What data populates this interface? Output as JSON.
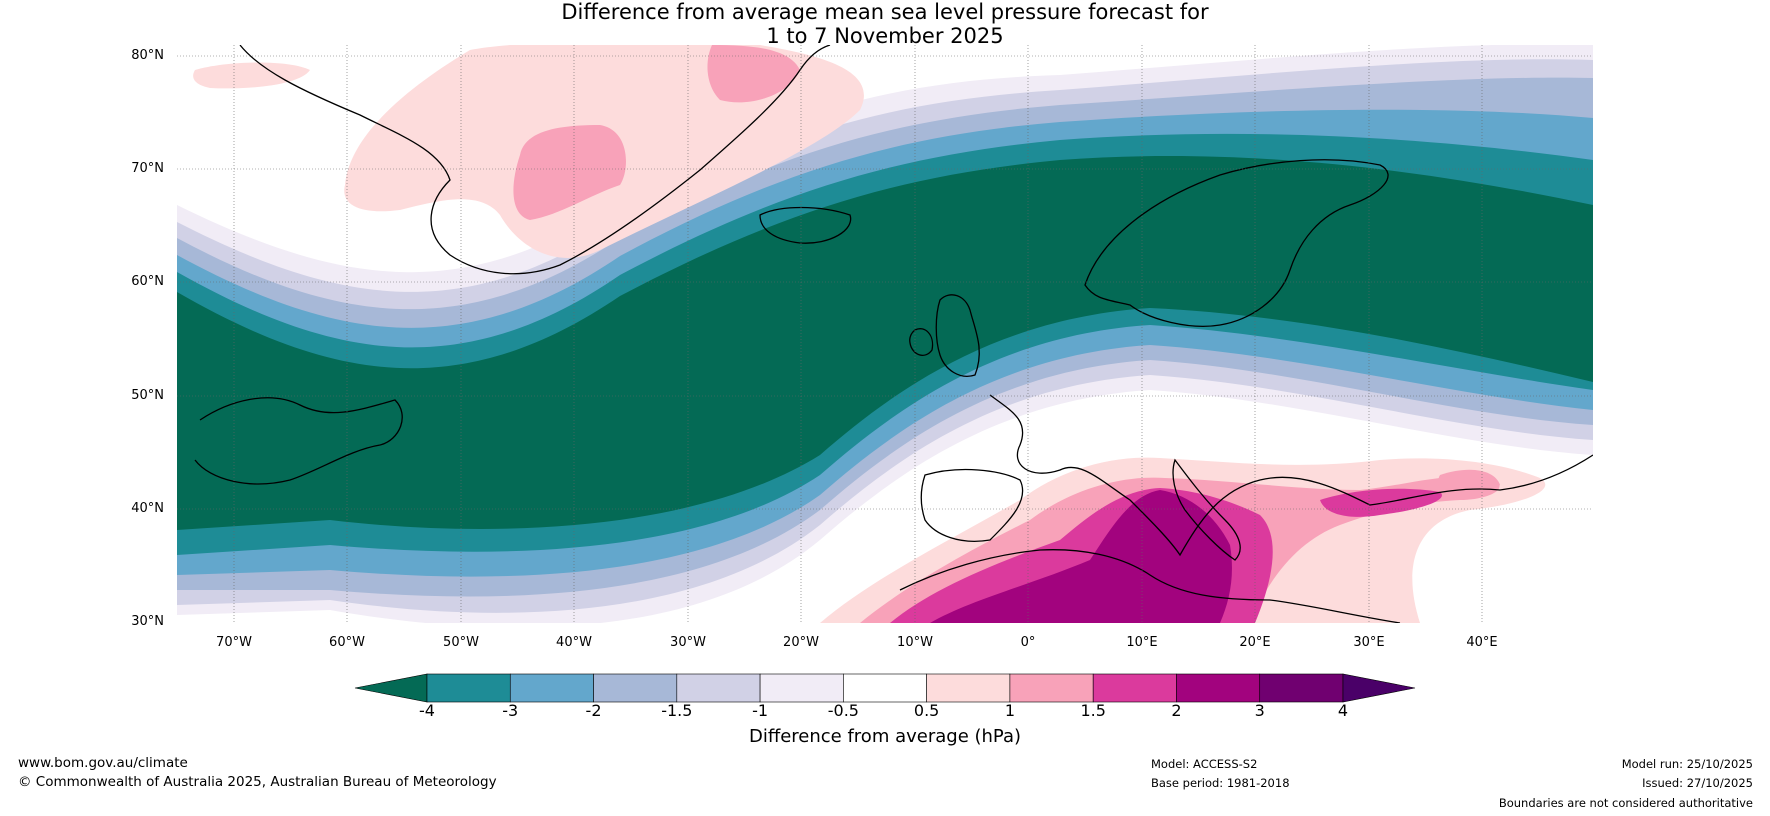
{
  "title": {
    "line1": "Difference from average mean sea level pressure forecast for",
    "line2": "1 to 7 November 2025"
  },
  "map": {
    "latitude_labels": [
      "80°N",
      "70°N",
      "60°N",
      "50°N",
      "40°N",
      "30°N"
    ],
    "longitude_labels": [
      "70°W",
      "60°W",
      "50°W",
      "40°W",
      "30°W",
      "20°W",
      "10°W",
      "0°",
      "10°E",
      "20°E",
      "30°E",
      "40°E"
    ],
    "features": [
      "Greenland",
      "Iceland",
      "Scandinavia",
      "British Isles",
      "Mediterranean",
      "North Africa",
      "Newfoundland"
    ]
  },
  "colorbar": {
    "tick_labels": [
      "-4",
      "-3",
      "-2",
      "-1.5",
      "-1",
      "-0.5",
      "0.5",
      "1",
      "1.5",
      "2",
      "3",
      "4"
    ],
    "colors": [
      "#046a55",
      "#1e8c96",
      "#63a7cc",
      "#a7b8d7",
      "#d1d1e6",
      "#f1ecf6",
      "#ffffff",
      "#fddcdc",
      "#f8a2b9",
      "#db3a9d",
      "#a2037e",
      "#700070",
      "#4a0068"
    ],
    "label": "Difference from average (hPa)"
  },
  "footer": {
    "website": "www.bom.gov.au/climate",
    "copyright": "© Commonwealth of Australia 2025, Australian Bureau of Meteorology",
    "model": "Model: ACCESS-S2",
    "base_period": "Base period: 1981-2018",
    "model_run": "Model run: 25/10/2025",
    "issued": "Issued: 27/10/2025",
    "disclaimer": "Boundaries are not considered authoritative"
  }
}
